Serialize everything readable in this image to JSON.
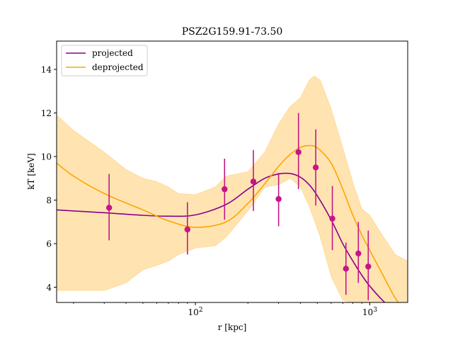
{
  "chart_data": {
    "type": "line",
    "title": "PSZ2G159.91-73.50",
    "xlabel": "r [kpc]",
    "ylabel": "kT [keV]",
    "xscale": "log",
    "xlim": [
      16,
      1650
    ],
    "ylim": [
      3.3,
      15.3
    ],
    "grid": false,
    "legend_position": "top-left",
    "x_ticks": [
      {
        "value": 100,
        "base": "10",
        "exp": "2"
      },
      {
        "value": 1000,
        "base": "10",
        "exp": "3"
      }
    ],
    "y_ticks": [
      4,
      6,
      8,
      10,
      12,
      14
    ],
    "colors": {
      "projected": "#8b008b",
      "deprojected": "#ffa500",
      "band": "#ffa500",
      "points": "#c71585"
    },
    "series": [
      {
        "name": "projected",
        "x": [
          16,
          20,
          30,
          50,
          70,
          100,
          150,
          200,
          250,
          300,
          350,
          400,
          450,
          500,
          600,
          700,
          800,
          900,
          1000,
          1200,
          1400
        ],
        "y": [
          7.55,
          7.5,
          7.42,
          7.3,
          7.26,
          7.32,
          7.8,
          8.5,
          9.0,
          9.2,
          9.22,
          9.05,
          8.7,
          8.2,
          7.1,
          6.0,
          5.2,
          4.55,
          4.05,
          3.35,
          2.9
        ]
      },
      {
        "name": "deprojected",
        "x": [
          16,
          20,
          30,
          50,
          70,
          100,
          150,
          200,
          250,
          300,
          350,
          400,
          450,
          500,
          600,
          700,
          800,
          900,
          1000,
          1200,
          1400,
          1600
        ],
        "y": [
          9.7,
          9.1,
          8.3,
          7.55,
          7.05,
          6.75,
          7.0,
          7.85,
          8.75,
          9.55,
          10.1,
          10.42,
          10.5,
          10.4,
          9.7,
          8.5,
          7.3,
          6.4,
          5.7,
          4.5,
          3.5,
          2.9
        ]
      }
    ],
    "band": {
      "series": "deprojected",
      "x": [
        16,
        20,
        30,
        40,
        50,
        60,
        70,
        80,
        100,
        130,
        150,
        200,
        250,
        300,
        350,
        400,
        450,
        480,
        520,
        600,
        700,
        800,
        900,
        1000,
        1200,
        1400,
        1650
      ],
      "upper": [
        11.9,
        11.2,
        10.2,
        9.4,
        9.0,
        8.85,
        8.6,
        8.3,
        8.25,
        8.6,
        9.1,
        9.3,
        10.2,
        11.5,
        12.3,
        12.7,
        13.5,
        13.7,
        13.5,
        12.2,
        10.4,
        8.8,
        7.6,
        7.3,
        6.3,
        5.5,
        5.2
      ],
      "lower": [
        3.85,
        3.85,
        3.85,
        4.2,
        4.8,
        5.0,
        5.2,
        5.5,
        5.8,
        5.9,
        6.3,
        7.5,
        8.6,
        8.7,
        9.0,
        8.6,
        7.7,
        7.1,
        6.3,
        4.5,
        3.4,
        3.3,
        3.3,
        3.3,
        3.3,
        3.3,
        3.3
      ]
    },
    "points": {
      "x": [
        32,
        90,
        147,
        215,
        300,
        390,
        490,
        610,
        730,
        860,
        980
      ],
      "y": [
        7.65,
        6.65,
        8.5,
        8.85,
        8.05,
        10.2,
        9.5,
        7.15,
        4.85,
        5.55,
        4.95
      ],
      "err_low": [
        1.5,
        1.15,
        1.4,
        1.35,
        1.25,
        1.7,
        1.75,
        1.45,
        1.2,
        1.35,
        1.55
      ],
      "err_high": [
        1.55,
        1.25,
        1.4,
        1.45,
        1.2,
        1.8,
        1.75,
        1.5,
        1.2,
        1.45,
        1.65
      ]
    }
  }
}
